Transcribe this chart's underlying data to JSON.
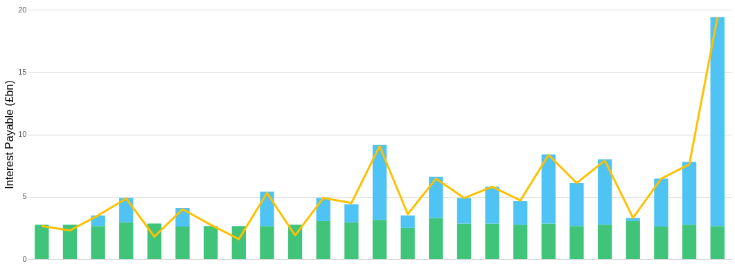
{
  "chart_data": {
    "type": "bar",
    "stacked": true,
    "ylabel": "Interest Payable (£bn)",
    "categories": [
      null,
      null,
      null,
      null,
      null,
      null,
      null,
      null,
      null,
      null,
      null,
      null,
      null,
      null,
      null,
      null,
      null,
      null,
      null,
      null,
      null,
      null,
      null,
      null,
      null
    ],
    "series": [
      {
        "color": "#40c47a",
        "values": [
          2.75,
          2.75,
          2.65,
          2.95,
          2.85,
          2.6,
          2.65,
          2.65,
          2.65,
          2.75,
          3.05,
          2.95,
          3.15,
          2.5,
          3.3,
          2.85,
          2.85,
          2.75,
          2.85,
          2.65,
          2.75,
          3.05,
          2.6,
          2.75,
          2.65
        ]
      },
      {
        "color": "#4fc3f3",
        "values": [
          0,
          0,
          0.85,
          1.95,
          0,
          1.5,
          0,
          0,
          2.75,
          0,
          1.85,
          1.45,
          6.0,
          1.0,
          3.3,
          2.05,
          2.95,
          1.9,
          5.55,
          3.45,
          5.25,
          0.25,
          3.85,
          5.05,
          16.75
        ]
      },
      {
        "type": "line",
        "color": "#ffc000",
        "values": [
          2.65,
          2.3,
          3.5,
          4.85,
          1.8,
          4.0,
          2.75,
          1.6,
          5.3,
          1.9,
          4.9,
          4.5,
          9.05,
          3.6,
          6.45,
          4.9,
          5.8,
          4.7,
          8.35,
          6.1,
          7.9,
          3.3,
          6.45,
          7.6,
          19.4
        ]
      }
    ],
    "ylim": [
      0,
      20
    ],
    "yticks": [
      0,
      5,
      10,
      15,
      20
    ],
    "grid": "y",
    "tick_labels": "y"
  }
}
